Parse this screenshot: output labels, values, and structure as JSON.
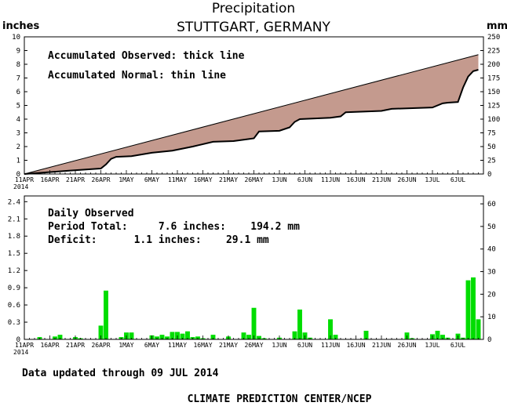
{
  "title": "Precipitation",
  "subtitle": "STUTTGART, GERMANY",
  "units_left": "inches",
  "units_right": "mm",
  "top_annotations": [
    "Accumulated Observed: thick line",
    "Accumulated Normal: thin line"
  ],
  "bottom_annotations": [
    "Daily Observed",
    "Period Total:     7.6 inches:    194.2 mm",
    "Deficit:      1.1 inches:    29.1 mm"
  ],
  "updated_text": "Data updated through 09 JUL 2014",
  "footer": "CLIMATE PREDICTION CENTER/NCEP",
  "x_year_label": "2014",
  "x_tick_labels": [
    "11APR",
    "16APR",
    "21APR",
    "26APR",
    "1MAY",
    "6MAY",
    "11MAY",
    "16MAY",
    "21MAY",
    "26MAY",
    "1JUN",
    "6JUN",
    "11JUN",
    "16JUN",
    "21JUN",
    "26JUN",
    "1JUL",
    "6JUL"
  ],
  "colors": {
    "fill": "#c49a8e",
    "bars": "#00dd00",
    "line": "#000000"
  },
  "chart_data": [
    {
      "type": "area",
      "name": "accumulated",
      "x_start": "2014-04-11",
      "x_end": "2014-07-09",
      "ylim_inches": [
        0,
        10
      ],
      "ylim_mm": [
        0,
        250
      ],
      "y_ticks_left": [
        "0",
        "1",
        "2",
        "3",
        "4",
        "5",
        "6",
        "7",
        "8",
        "9",
        "10"
      ],
      "y_ticks_right": [
        "0",
        "25",
        "50",
        "75",
        "100",
        "125",
        "150",
        "175",
        "200",
        "225",
        "250"
      ],
      "series": [
        {
          "x": [
            "2014-04-11",
            "2014-04-20",
            "2014-04-26",
            "2014-04-27",
            "2014-04-28",
            "2014-04-29",
            "2014-05-02",
            "2014-05-06",
            "2014-05-10",
            "2014-05-14",
            "2014-05-18",
            "2014-05-22",
            "2014-05-25",
            "2014-05-26",
            "2014-05-27",
            "2014-05-31",
            "2014-06-02",
            "2014-06-03",
            "2014-06-04",
            "2014-06-10",
            "2014-06-12",
            "2014-06-13",
            "2014-06-20",
            "2014-06-22",
            "2014-06-30",
            "2014-07-02",
            "2014-07-03",
            "2014-07-05",
            "2014-07-06",
            "2014-07-07",
            "2014-07-08",
            "2014-07-09"
          ],
          "values": [
            0.0,
            0.25,
            0.4,
            0.7,
            1.1,
            1.25,
            1.3,
            1.55,
            1.7,
            2.0,
            2.35,
            2.4,
            2.55,
            2.6,
            3.1,
            3.15,
            3.4,
            3.8,
            4.0,
            4.1,
            4.2,
            4.5,
            4.6,
            4.75,
            4.85,
            5.15,
            5.2,
            5.25,
            6.3,
            7.1,
            7.5,
            7.6
          ]
        },
        {
          "x": [
            "2014-04-11",
            "2014-07-09"
          ],
          "values": [
            0.0,
            8.7
          ]
        }
      ]
    },
    {
      "type": "bar",
      "name": "daily",
      "x_start": "2014-04-11",
      "ylim_inches": [
        0,
        2.5
      ],
      "ylim_mm": [
        0,
        63.5
      ],
      "y_ticks_left": [
        "0",
        "0.3",
        "0.6",
        "0.9",
        "1.2",
        "1.5",
        "1.8",
        "2.1",
        "2.4"
      ],
      "y_ticks_right": [
        "0",
        "10",
        "20",
        "30",
        "40",
        "50",
        "60"
      ],
      "x": [
        "2014-04-14",
        "2014-04-17",
        "2014-04-18",
        "2014-04-21",
        "2014-04-22",
        "2014-04-26",
        "2014-04-27",
        "2014-04-30",
        "2014-05-01",
        "2014-05-02",
        "2014-05-06",
        "2014-05-07",
        "2014-05-08",
        "2014-05-09",
        "2014-05-10",
        "2014-05-11",
        "2014-05-12",
        "2014-05-13",
        "2014-05-14",
        "2014-05-15",
        "2014-05-16",
        "2014-05-18",
        "2014-05-21",
        "2014-05-24",
        "2014-05-25",
        "2014-05-26",
        "2014-05-27",
        "2014-05-28",
        "2014-05-31",
        "2014-06-03",
        "2014-06-04",
        "2014-06-05",
        "2014-06-06",
        "2014-06-10",
        "2014-06-11",
        "2014-06-17",
        "2014-06-25",
        "2014-06-26",
        "2014-06-30",
        "2014-07-01",
        "2014-07-02",
        "2014-07-03",
        "2014-07-05",
        "2014-07-06",
        "2014-07-07",
        "2014-07-08",
        "2014-07-09"
      ],
      "values": [
        0.04,
        0.05,
        0.08,
        0.04,
        0.02,
        0.24,
        0.85,
        0.04,
        0.12,
        0.12,
        0.07,
        0.05,
        0.08,
        0.05,
        0.13,
        0.13,
        0.1,
        0.14,
        0.04,
        0.05,
        0.02,
        0.08,
        0.05,
        0.12,
        0.08,
        0.55,
        0.06,
        0.02,
        0.03,
        0.14,
        0.52,
        0.12,
        0.03,
        0.35,
        0.08,
        0.15,
        0.12,
        0.02,
        0.09,
        0.15,
        0.08,
        0.03,
        0.1,
        0.03,
        1.03,
        1.08,
        0.35
      ]
    }
  ]
}
